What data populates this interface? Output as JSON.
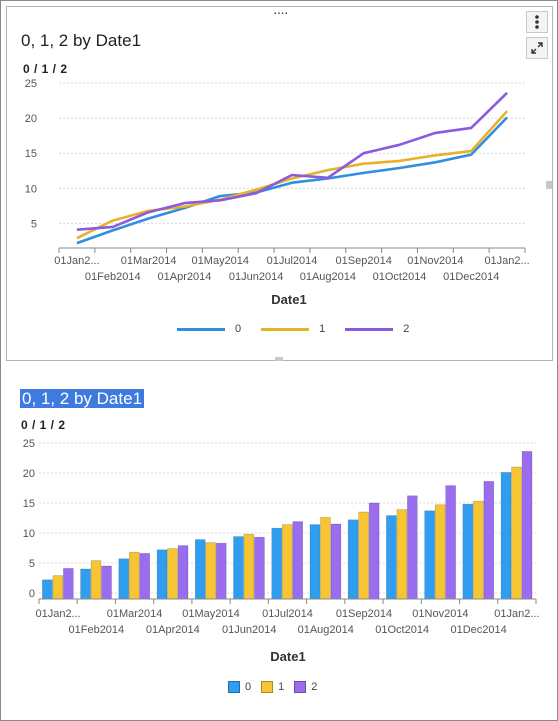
{
  "colors": {
    "series_0": "#2f8fde",
    "series_1": "#e6b22a",
    "series_2": "#8a5be0",
    "bar_0": "#2f9ef0",
    "bar_1": "#f7c433",
    "bar_2": "#9a6cf0",
    "selection": "#3f7ae0"
  },
  "icons": {
    "menu": "vertical-dots-icon",
    "maximize": "expand-arrows-icon",
    "drag": "drag-handle-icon"
  },
  "chart_data": [
    {
      "type": "line",
      "title": "0, 1, 2 by Date1",
      "ylabel": "0 / 1 / 2",
      "xlabel": "Date1",
      "x": [
        "01Jan2...",
        "01Feb2014",
        "01Mar2014",
        "01Apr2014",
        "01May2014",
        "01Jun2014",
        "01Jul2014",
        "01Aug2014",
        "01Sep2014",
        "01Oct2014",
        "01Nov2014",
        "01Dec2014",
        "01Jan2..."
      ],
      "yticks": [
        5,
        10,
        15,
        20,
        25
      ],
      "ylim": [
        1.5,
        25
      ],
      "grid": true,
      "legend_position": "bottom",
      "series": [
        {
          "name": "0",
          "values": [
            2.2,
            4.0,
            5.7,
            7.2,
            8.9,
            9.4,
            10.8,
            11.4,
            12.2,
            12.9,
            13.7,
            14.8,
            20.1
          ]
        },
        {
          "name": "1",
          "values": [
            2.9,
            5.4,
            6.8,
            7.4,
            8.4,
            9.8,
            11.4,
            12.6,
            13.5,
            13.9,
            14.7,
            15.3,
            21.0
          ]
        },
        {
          "name": "2",
          "values": [
            4.1,
            4.5,
            6.6,
            7.9,
            8.3,
            9.3,
            11.9,
            11.5,
            15.0,
            16.2,
            17.9,
            18.6,
            23.6
          ]
        }
      ]
    },
    {
      "type": "bar",
      "title": "0, 1, 2 by Date1",
      "ylabel": "0 / 1 / 2",
      "xlabel": "Date1",
      "categories": [
        "01Jan2...",
        "01Feb2014",
        "01Mar2014",
        "01Apr2014",
        "01May2014",
        "01Jun2014",
        "01Jul2014",
        "01Aug2014",
        "01Sep2014",
        "01Oct2014",
        "01Nov2014",
        "01Dec2014",
        "01Jan2..."
      ],
      "yticks": [
        0,
        5,
        10,
        15,
        20,
        25
      ],
      "ylim": [
        -1,
        25
      ],
      "grid": true,
      "legend_position": "bottom",
      "series": [
        {
          "name": "0",
          "values": [
            2.2,
            4.0,
            5.7,
            7.2,
            8.9,
            9.4,
            10.8,
            11.4,
            12.2,
            12.9,
            13.7,
            14.8,
            20.1
          ]
        },
        {
          "name": "1",
          "values": [
            2.9,
            5.4,
            6.8,
            7.4,
            8.4,
            9.8,
            11.4,
            12.6,
            13.5,
            13.9,
            14.7,
            15.3,
            21.0
          ]
        },
        {
          "name": "2",
          "values": [
            4.1,
            4.5,
            6.6,
            7.9,
            8.3,
            9.3,
            11.9,
            11.5,
            15.0,
            16.2,
            17.9,
            18.6,
            23.6
          ]
        }
      ]
    }
  ]
}
